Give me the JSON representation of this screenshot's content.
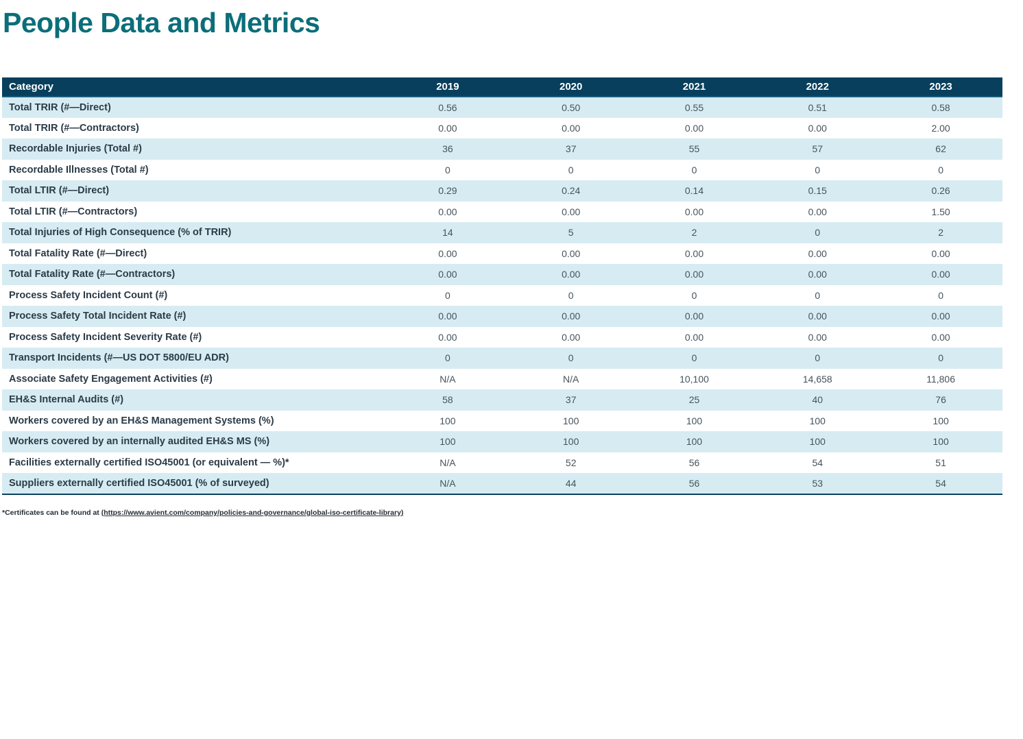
{
  "page_title": "People Data and Metrics",
  "colors": {
    "title_teal": "#0b6e79",
    "header_navy": "#083f5c",
    "stripe_light_blue": "#d6ecf2",
    "label_text": "#2b3b47",
    "value_text": "#45535c"
  },
  "table": {
    "category_header": "Category",
    "year_headers": [
      "2019",
      "2020",
      "2021",
      "2022",
      "2023"
    ],
    "rows": [
      {
        "label": "Total TRIR (#—Direct)",
        "values": [
          "0.56",
          "0.50",
          "0.55",
          "0.51",
          "0.58"
        ]
      },
      {
        "label": "Total TRIR (#—Contractors)",
        "values": [
          "0.00",
          "0.00",
          "0.00",
          "0.00",
          "2.00"
        ]
      },
      {
        "label": "Recordable Injuries (Total #)",
        "values": [
          "36",
          "37",
          "55",
          "57",
          "62"
        ]
      },
      {
        "label": "Recordable Illnesses (Total #)",
        "values": [
          "0",
          "0",
          "0",
          "0",
          "0"
        ]
      },
      {
        "label": "Total LTIR (#—Direct)",
        "values": [
          "0.29",
          "0.24",
          "0.14",
          "0.15",
          "0.26"
        ]
      },
      {
        "label": "Total LTIR (#—Contractors)",
        "values": [
          "0.00",
          "0.00",
          "0.00",
          "0.00",
          "1.50"
        ]
      },
      {
        "label": "Total Injuries of High Consequence (% of TRIR)",
        "values": [
          "14",
          "5",
          "2",
          "0",
          "2"
        ]
      },
      {
        "label": "Total Fatality Rate (#—Direct)",
        "values": [
          "0.00",
          "0.00",
          "0.00",
          "0.00",
          "0.00"
        ]
      },
      {
        "label": "Total Fatality Rate (#—Contractors)",
        "values": [
          "0.00",
          "0.00",
          "0.00",
          "0.00",
          "0.00"
        ]
      },
      {
        "label": "Process Safety Incident Count (#)",
        "values": [
          "0",
          "0",
          "0",
          "0",
          "0"
        ]
      },
      {
        "label": "Process Safety Total Incident Rate (#)",
        "values": [
          "0.00",
          "0.00",
          "0.00",
          "0.00",
          "0.00"
        ]
      },
      {
        "label": "Process Safety Incident Severity Rate (#)",
        "values": [
          "0.00",
          "0.00",
          "0.00",
          "0.00",
          "0.00"
        ]
      },
      {
        "label": "Transport Incidents (#—US DOT 5800/EU ADR)",
        "values": [
          "0",
          "0",
          "0",
          "0",
          "0"
        ]
      },
      {
        "label": "Associate Safety Engagement Activities (#)",
        "values": [
          "N/A",
          "N/A",
          "10,100",
          "14,658",
          "11,806"
        ]
      },
      {
        "label": "EH&S Internal Audits (#)",
        "values": [
          "58",
          "37",
          "25",
          "40",
          "76"
        ]
      },
      {
        "label": "Workers covered by an EH&S Management Systems (%)",
        "values": [
          "100",
          "100",
          "100",
          "100",
          "100"
        ]
      },
      {
        "label": "Workers covered by an internally audited EH&S MS (%)",
        "values": [
          "100",
          "100",
          "100",
          "100",
          "100"
        ]
      },
      {
        "label": "Facilities externally certified ISO45001 (or equivalent — %)*",
        "values": [
          "N/A",
          "52",
          "56",
          "54",
          "51"
        ]
      },
      {
        "label": "Suppliers externally certified ISO45001 (% of surveyed)",
        "values": [
          "N/A",
          "44",
          "56",
          "53",
          "54"
        ]
      }
    ]
  },
  "footnote": {
    "prefix": "*Certificates can be found at ",
    "link": "(https://www.avient.com/company/policies-and-governance/global-iso-certificate-library)"
  }
}
